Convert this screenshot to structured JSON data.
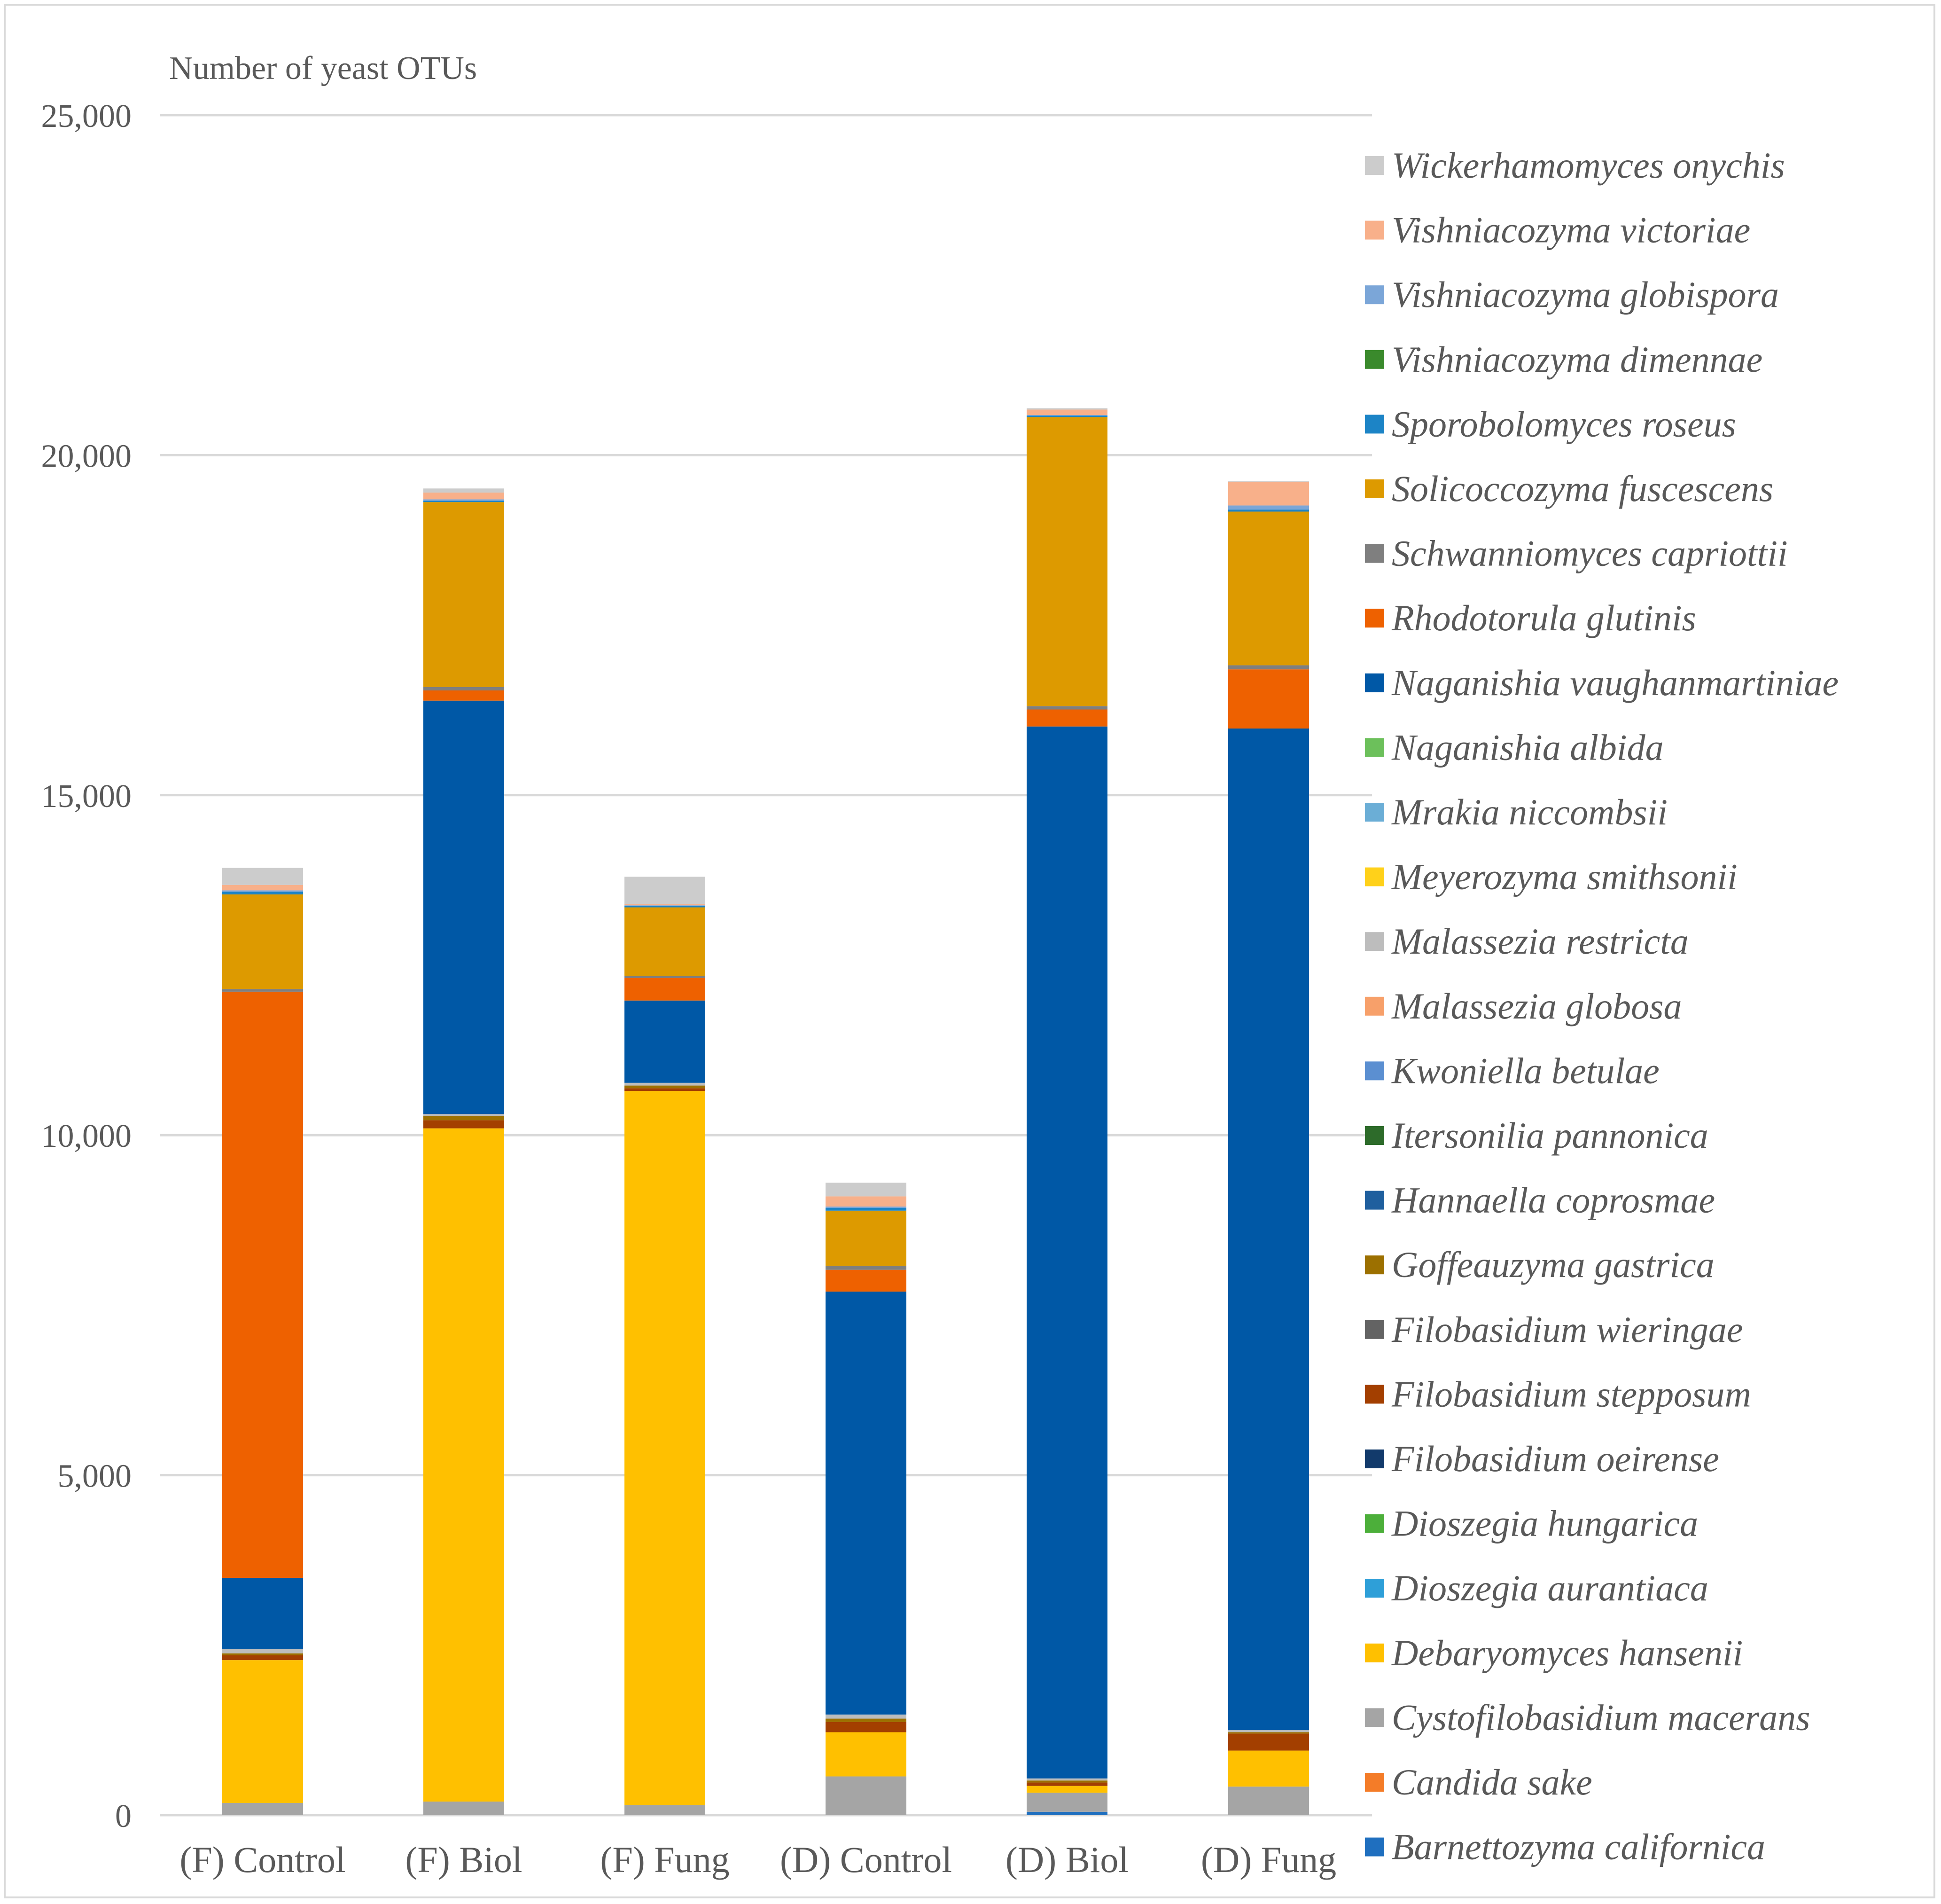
{
  "chart_data": {
    "type": "bar",
    "stacked": true,
    "title": "",
    "ylabel": "Number of yeast OTUs",
    "xlabel": "",
    "ylim": [
      0,
      25000
    ],
    "yticks": [
      0,
      5000,
      10000,
      15000,
      20000,
      25000
    ],
    "ytick_labels": [
      "0",
      "5,000",
      "10,000",
      "15,000",
      "20,000",
      "25,000"
    ],
    "grid": true,
    "legend_position": "right",
    "categories": [
      "(F) Control",
      "(F) Biol",
      "(F) Fung",
      "(D) Control",
      "(D) Biol",
      "(D) Fung"
    ],
    "series": [
      {
        "name": "Barnettozyma californica",
        "color": "#1f6fbf",
        "values": [
          0,
          0,
          0,
          0,
          50,
          0
        ]
      },
      {
        "name": "Candida sake",
        "color": "#f47c28",
        "values": [
          0,
          0,
          0,
          0,
          0,
          0
        ]
      },
      {
        "name": "Cystofilobasidium macerans",
        "color": "#a5a5a5",
        "values": [
          180,
          200,
          150,
          570,
          280,
          420
        ]
      },
      {
        "name": "Debaryomyces hansenii",
        "color": "#ffc000",
        "values": [
          2100,
          9900,
          10500,
          650,
          100,
          530
        ]
      },
      {
        "name": "Dioszegia aurantiaca",
        "color": "#2e9fd8",
        "values": [
          0,
          0,
          0,
          0,
          0,
          0
        ]
      },
      {
        "name": "Dioszegia hungarica",
        "color": "#4caf3a",
        "values": [
          0,
          0,
          0,
          0,
          0,
          0
        ]
      },
      {
        "name": "Filobasidium oeirense",
        "color": "#123a6b",
        "values": [
          0,
          0,
          0,
          0,
          0,
          0
        ]
      },
      {
        "name": "Filobasidium stepposum",
        "color": "#a33f00",
        "values": [
          70,
          120,
          40,
          150,
          50,
          250
        ]
      },
      {
        "name": "Filobasidium wieringae",
        "color": "#636363",
        "values": [
          0,
          0,
          0,
          0,
          0,
          0
        ]
      },
      {
        "name": "Goffeauzyma gastrica",
        "color": "#9c7000",
        "values": [
          30,
          60,
          40,
          50,
          30,
          20
        ]
      },
      {
        "name": "Hannaella coprosmae",
        "color": "#1f5f9e",
        "values": [
          0,
          0,
          0,
          0,
          0,
          0
        ]
      },
      {
        "name": "Itersonilia pannonica",
        "color": "#2d6b2a",
        "values": [
          0,
          0,
          0,
          0,
          0,
          0
        ]
      },
      {
        "name": "Kwoniella betulae",
        "color": "#5b8fd1",
        "values": [
          0,
          0,
          0,
          0,
          0,
          0
        ]
      },
      {
        "name": "Malassezia globosa",
        "color": "#f7a06a",
        "values": [
          0,
          0,
          0,
          0,
          0,
          0
        ]
      },
      {
        "name": "Malassezia restricta",
        "color": "#bdbdbd",
        "values": [
          60,
          30,
          40,
          60,
          30,
          30
        ]
      },
      {
        "name": "Meyerozyma smithsonii",
        "color": "#ffd11a",
        "values": [
          0,
          0,
          0,
          0,
          0,
          0
        ]
      },
      {
        "name": "Mrakia niccombsii",
        "color": "#6baed6",
        "values": [
          0,
          0,
          0,
          0,
          0,
          0
        ]
      },
      {
        "name": "Naganishia albida",
        "color": "#6cc05b",
        "values": [
          0,
          0,
          0,
          0,
          0,
          0
        ]
      },
      {
        "name": "Naganishia vaughanmartiniae",
        "color": "#0058a6",
        "values": [
          1050,
          6080,
          1210,
          6220,
          15470,
          14730
        ]
      },
      {
        "name": "Rhodotorula glutinis",
        "color": "#ee6100",
        "values": [
          8620,
          150,
          330,
          320,
          250,
          870
        ]
      },
      {
        "name": "Schwanniomyces capriottii",
        "color": "#7f7f7f",
        "values": [
          40,
          50,
          30,
          60,
          50,
          60
        ]
      },
      {
        "name": "Solicoccozyma fuscescens",
        "color": "#dd9a00",
        "values": [
          1390,
          2720,
          1010,
          810,
          4250,
          2260
        ]
      },
      {
        "name": "Sporobolomyces roseus",
        "color": "#1c84c6",
        "values": [
          40,
          20,
          20,
          40,
          20,
          30
        ]
      },
      {
        "name": "Vishniacozyma dimennae",
        "color": "#3a8a2c",
        "values": [
          0,
          0,
          0,
          0,
          0,
          0
        ]
      },
      {
        "name": "Vishniacozyma globispora",
        "color": "#7ba6d8",
        "values": [
          20,
          20,
          10,
          20,
          10,
          60
        ]
      },
      {
        "name": "Vishniacozyma victoriae",
        "color": "#f8b08a",
        "values": [
          80,
          100,
          20,
          150,
          80,
          350
        ]
      },
      {
        "name": "Wickerhamomyces onychis",
        "color": "#cccccc",
        "values": [
          250,
          60,
          400,
          200,
          20,
          10
        ]
      }
    ]
  }
}
